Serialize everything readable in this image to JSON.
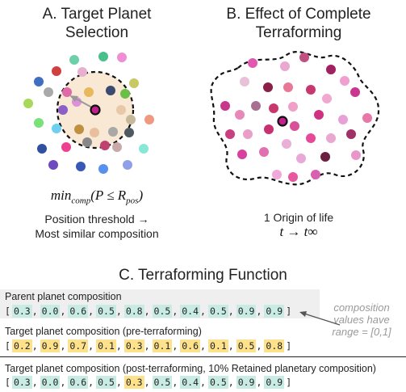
{
  "panel_a": {
    "title_line1": "A. Target Planet",
    "title_line2": "Selection",
    "formula_main": "min",
    "formula_sub": "comp",
    "formula_open": "(P ≤ R",
    "formula_sub2": "pos",
    "formula_close": ")",
    "caption_line1": "Position threshold →",
    "caption_line2": "Most similar composition"
  },
  "panel_b": {
    "title_line1": "B. Effect of Complete",
    "title_line2": "Terraforming",
    "caption_line1": "1 Origin of life",
    "caption_line2": "t → t∞"
  },
  "panel_c": {
    "title": "C. Terraforming Function",
    "parent_label": "Parent planet composition",
    "parent_values": [
      "0.3",
      "0.0",
      "0.6",
      "0.5",
      "0.8",
      "0.5",
      "0.4",
      "0.5",
      "0.9",
      "0.9"
    ],
    "target_pre_label": "Target planet composition (pre-terraforming)",
    "target_pre_values": [
      "0.2",
      "0.9",
      "0.7",
      "0.1",
      "0.3",
      "0.1",
      "0.6",
      "0.1",
      "0.5",
      "0.8"
    ],
    "target_post_label": "Target planet composition (post-terraforming, 10% Retained planetary composition)",
    "target_post_values": [
      "0.3",
      "0.0",
      "0.6",
      "0.5",
      "0.3",
      "0.5",
      "0.4",
      "0.5",
      "0.9",
      "0.9"
    ],
    "target_post_colors": [
      "teal",
      "teal",
      "teal",
      "teal",
      "yellow",
      "teal",
      "teal",
      "teal",
      "teal",
      "teal"
    ],
    "note_line1": "composition",
    "note_line2": "values have",
    "note_line3": "range = [0,1]"
  },
  "colors": {
    "highlight_disc": "#f8e8d4",
    "teal_cell": "#c8ece4",
    "yellow_cell": "#fde28b",
    "dashed_outline": "#111111"
  }
}
